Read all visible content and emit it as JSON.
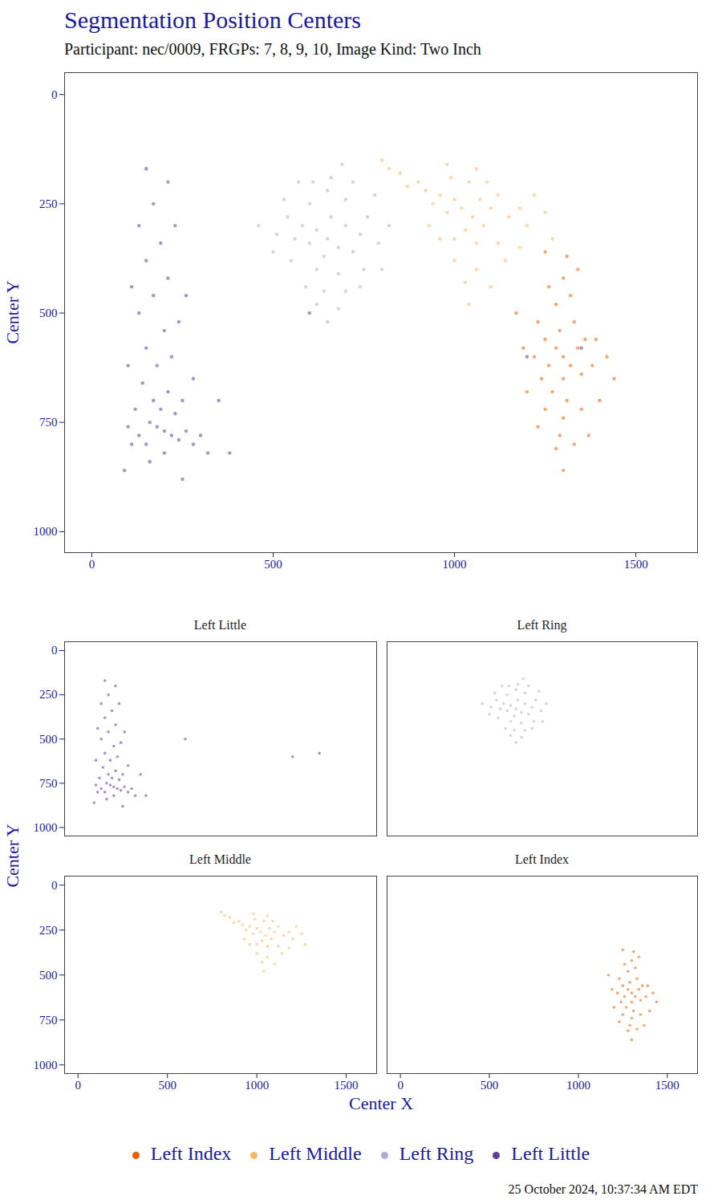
{
  "chart_data": {
    "type": "scatter",
    "title": "Segmentation Position Centers",
    "subtitle": "Participant: nec/0009, FRGPs: 7, 8, 9, 10, Image Kind: Two Inch",
    "x_label": "Center X",
    "y_label": "Center Y",
    "caption": "25 October 2024, 10:37:34 AM EDT",
    "xlim": [
      -75,
      1670
    ],
    "ylim": [
      1048,
      -50
    ],
    "xticks": [
      0,
      500,
      1000,
      1500
    ],
    "yticks": [
      0,
      250,
      500,
      750,
      1000
    ],
    "legend": "bottom",
    "facets": [
      "Left Little",
      "Left Ring",
      "Left Middle",
      "Left Index"
    ],
    "series": [
      {
        "name": "Left Index",
        "color": "#e66101",
        "values": [
          [
            1300,
            600
          ],
          [
            1280,
            580
          ],
          [
            1320,
            620
          ],
          [
            1260,
            620
          ],
          [
            1340,
            580
          ],
          [
            1300,
            650
          ],
          [
            1290,
            540
          ],
          [
            1250,
            560
          ],
          [
            1350,
            640
          ],
          [
            1310,
            700
          ],
          [
            1270,
            680
          ],
          [
            1330,
            520
          ],
          [
            1240,
            650
          ],
          [
            1360,
            560
          ],
          [
            1300,
            740
          ],
          [
            1280,
            480
          ],
          [
            1320,
            460
          ],
          [
            1220,
            600
          ],
          [
            1380,
            620
          ],
          [
            1250,
            720
          ],
          [
            1350,
            720
          ],
          [
            1290,
            780
          ],
          [
            1230,
            520
          ],
          [
            1390,
            560
          ],
          [
            1300,
            420
          ],
          [
            1260,
            440
          ],
          [
            1340,
            400
          ],
          [
            1200,
            680
          ],
          [
            1400,
            700
          ],
          [
            1280,
            810
          ],
          [
            1330,
            800
          ],
          [
            1190,
            580
          ],
          [
            1420,
            600
          ],
          [
            1250,
            360
          ],
          [
            1310,
            370
          ],
          [
            1230,
            760
          ],
          [
            1370,
            780
          ],
          [
            1300,
            860
          ],
          [
            1170,
            500
          ],
          [
            1440,
            650
          ]
        ]
      },
      {
        "name": "Left Middle",
        "color": "#fdb863",
        "values": [
          [
            1020,
            260
          ],
          [
            1000,
            240
          ],
          [
            1050,
            280
          ],
          [
            980,
            270
          ],
          [
            1070,
            240
          ],
          [
            1030,
            310
          ],
          [
            960,
            230
          ],
          [
            1100,
            260
          ],
          [
            940,
            250
          ],
          [
            1080,
            300
          ],
          [
            1000,
            330
          ],
          [
            1060,
            340
          ],
          [
            920,
            220
          ],
          [
            1120,
            230
          ],
          [
            1150,
            280
          ],
          [
            900,
            200
          ],
          [
            1040,
            200
          ],
          [
            990,
            190
          ],
          [
            1090,
            200
          ],
          [
            1180,
            260
          ],
          [
            1000,
            380
          ],
          [
            1060,
            400
          ],
          [
            1120,
            340
          ],
          [
            870,
            210
          ],
          [
            1200,
            300
          ],
          [
            1030,
            430
          ],
          [
            960,
            330
          ],
          [
            850,
            180
          ],
          [
            1140,
            380
          ],
          [
            1220,
            230
          ],
          [
            820,
            170
          ],
          [
            1250,
            270
          ],
          [
            1100,
            440
          ],
          [
            980,
            160
          ],
          [
            1060,
            170
          ],
          [
            1180,
            350
          ],
          [
            930,
            300
          ],
          [
            1040,
            480
          ],
          [
            1270,
            330
          ],
          [
            800,
            150
          ]
        ]
      },
      {
        "name": "Left Ring",
        "color": "#b2abd2",
        "values": [
          [
            650,
            330
          ],
          [
            620,
            310
          ],
          [
            680,
            350
          ],
          [
            600,
            340
          ],
          [
            700,
            300
          ],
          [
            640,
            370
          ],
          [
            660,
            280
          ],
          [
            580,
            300
          ],
          [
            720,
            360
          ],
          [
            560,
            330
          ],
          [
            740,
            320
          ],
          [
            620,
            400
          ],
          [
            680,
            410
          ],
          [
            600,
            250
          ],
          [
            700,
            240
          ],
          [
            650,
            220
          ],
          [
            540,
            280
          ],
          [
            760,
            280
          ],
          [
            550,
            380
          ],
          [
            750,
            400
          ],
          [
            640,
            450
          ],
          [
            590,
            440
          ],
          [
            700,
            450
          ],
          [
            510,
            320
          ],
          [
            790,
            340
          ],
          [
            660,
            190
          ],
          [
            610,
            200
          ],
          [
            720,
            200
          ],
          [
            530,
            240
          ],
          [
            780,
            230
          ],
          [
            620,
            480
          ],
          [
            680,
            490
          ],
          [
            500,
            360
          ],
          [
            820,
            300
          ],
          [
            570,
            200
          ],
          [
            740,
            440
          ],
          [
            460,
            300
          ],
          [
            650,
            520
          ],
          [
            800,
            400
          ],
          [
            690,
            160
          ]
        ]
      },
      {
        "name": "Left Little",
        "color": "#5e3c99",
        "values": [
          [
            200,
            770
          ],
          [
            180,
            760
          ],
          [
            220,
            780
          ],
          [
            160,
            750
          ],
          [
            240,
            790
          ],
          [
            150,
            800
          ],
          [
            260,
            770
          ],
          [
            200,
            820
          ],
          [
            130,
            780
          ],
          [
            280,
            800
          ],
          [
            190,
            720
          ],
          [
            230,
            730
          ],
          [
            170,
            700
          ],
          [
            210,
            680
          ],
          [
            140,
            660
          ],
          [
            250,
            700
          ],
          [
            120,
            720
          ],
          [
            300,
            780
          ],
          [
            320,
            820
          ],
          [
            110,
            800
          ],
          [
            100,
            760
          ],
          [
            180,
            620
          ],
          [
            220,
            600
          ],
          [
            150,
            580
          ],
          [
            200,
            540
          ],
          [
            130,
            500
          ],
          [
            240,
            520
          ],
          [
            170,
            460
          ],
          [
            210,
            420
          ],
          [
            110,
            440
          ],
          [
            260,
            460
          ],
          [
            150,
            380
          ],
          [
            190,
            340
          ],
          [
            230,
            300
          ],
          [
            130,
            300
          ],
          [
            170,
            250
          ],
          [
            210,
            200
          ],
          [
            150,
            170
          ],
          [
            350,
            700
          ],
          [
            380,
            820
          ],
          [
            90,
            860
          ],
          [
            250,
            880
          ],
          [
            600,
            500
          ],
          [
            1200,
            600
          ],
          [
            1350,
            580
          ],
          [
            160,
            840
          ],
          [
            280,
            650
          ],
          [
            100,
            620
          ]
        ]
      }
    ]
  }
}
